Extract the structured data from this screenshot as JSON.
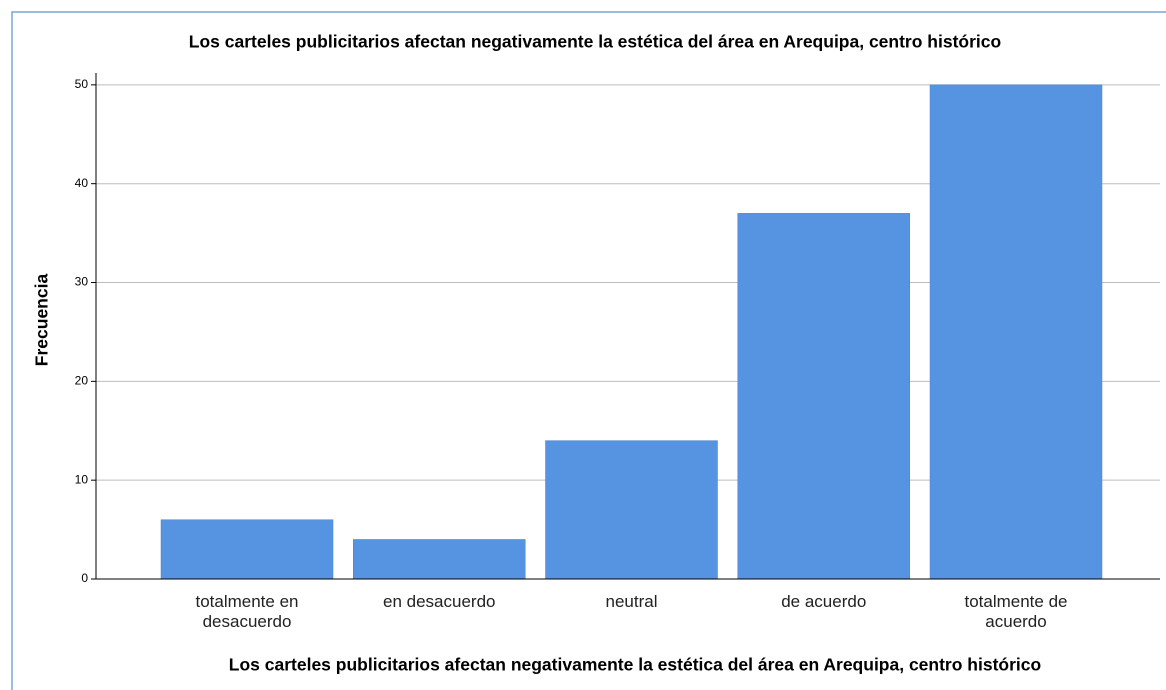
{
  "chart_data": {
    "type": "bar",
    "title": "Los carteles publicitarios afectan negativamente la estética del área en Arequipa, centro histórico",
    "x_label": "Los carteles publicitarios afectan negativamente la estética del área en Arequipa, centro histórico",
    "y_label": "Frecuencia",
    "categories": [
      "totalmente en desacuerdo",
      "en desacuerdo",
      "neutral",
      "de acuerdo",
      "totalmente de acuerdo"
    ],
    "values": [
      6,
      4,
      14,
      37,
      50
    ],
    "color": "#5694e2",
    "ylim": [
      0,
      51.2
    ],
    "yticks": [
      0,
      10,
      20,
      30,
      40,
      50
    ],
    "grid": true
  }
}
